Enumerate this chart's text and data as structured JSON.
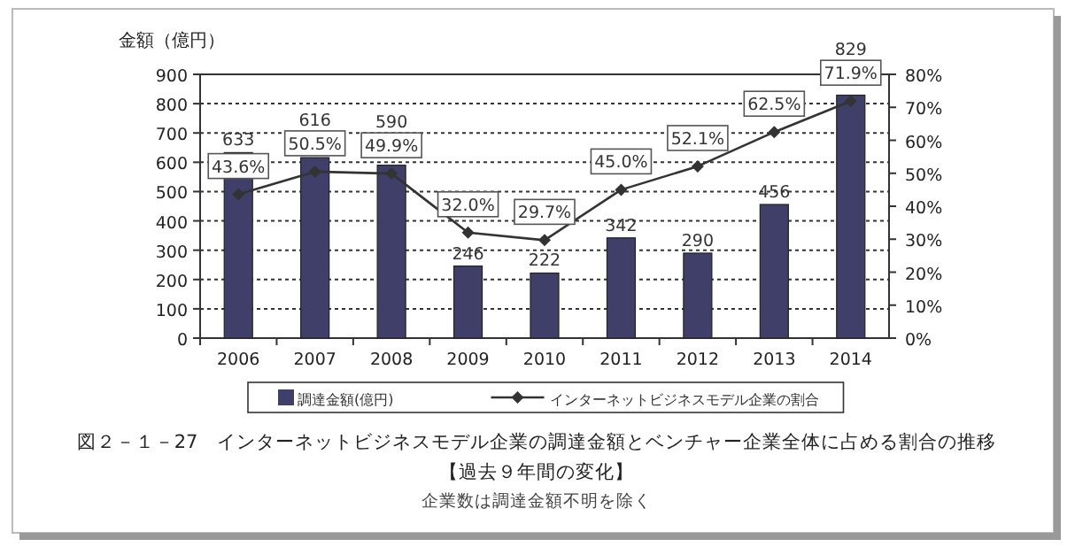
{
  "chart_data": {
    "type": "bar",
    "title": "図２－１－27　インターネットビジネスモデル企業の調達金額とベンチャー企業全体に占める割合の推移",
    "subtitle": "【過去９年間の変化】",
    "annotations": [
      "企業数は調達金額不明を除く"
    ],
    "ylabel": "金額（億円）",
    "categories": [
      "2006",
      "2007",
      "2008",
      "2009",
      "2010",
      "2011",
      "2012",
      "2013",
      "2014"
    ],
    "series": [
      {
        "name": "調達金額(億円)",
        "type": "bar",
        "color": "#3f3f6a",
        "values": [
          633,
          616,
          590,
          246,
          222,
          342,
          290,
          456,
          829
        ],
        "value_labels": [
          "633",
          "616",
          "590",
          "246",
          "222",
          "342",
          "290",
          "456",
          "829"
        ]
      },
      {
        "name": "インターネットビジネスモデル企業の割合",
        "type": "line",
        "axis": "y2",
        "color": "#333333",
        "marker": "diamond",
        "values": [
          43.6,
          50.5,
          49.9,
          32.0,
          29.7,
          45.0,
          52.1,
          62.5,
          71.9
        ],
        "value_labels": [
          "43.6%",
          "50.5%",
          "49.9%",
          "32.0%",
          "29.7%",
          "45.0%",
          "52.1%",
          "62.5%",
          "71.9%"
        ]
      }
    ],
    "ylim": [
      0,
      900
    ],
    "yticks": [
      0,
      100,
      200,
      300,
      400,
      500,
      600,
      700,
      800,
      900
    ],
    "y2lim": [
      0,
      80
    ],
    "y2ticks": [
      {
        "value": 0,
        "label": "0%"
      },
      {
        "value": 10,
        "label": "10%"
      },
      {
        "value": 20,
        "label": "20%"
      },
      {
        "value": 30,
        "label": "30%"
      },
      {
        "value": 40,
        "label": "40%"
      },
      {
        "value": 50,
        "label": "50%"
      },
      {
        "value": 60,
        "label": "60%"
      },
      {
        "value": 70,
        "label": "70%"
      },
      {
        "value": 80,
        "label": "80%"
      }
    ],
    "grid": "y",
    "legend": "bottom"
  }
}
